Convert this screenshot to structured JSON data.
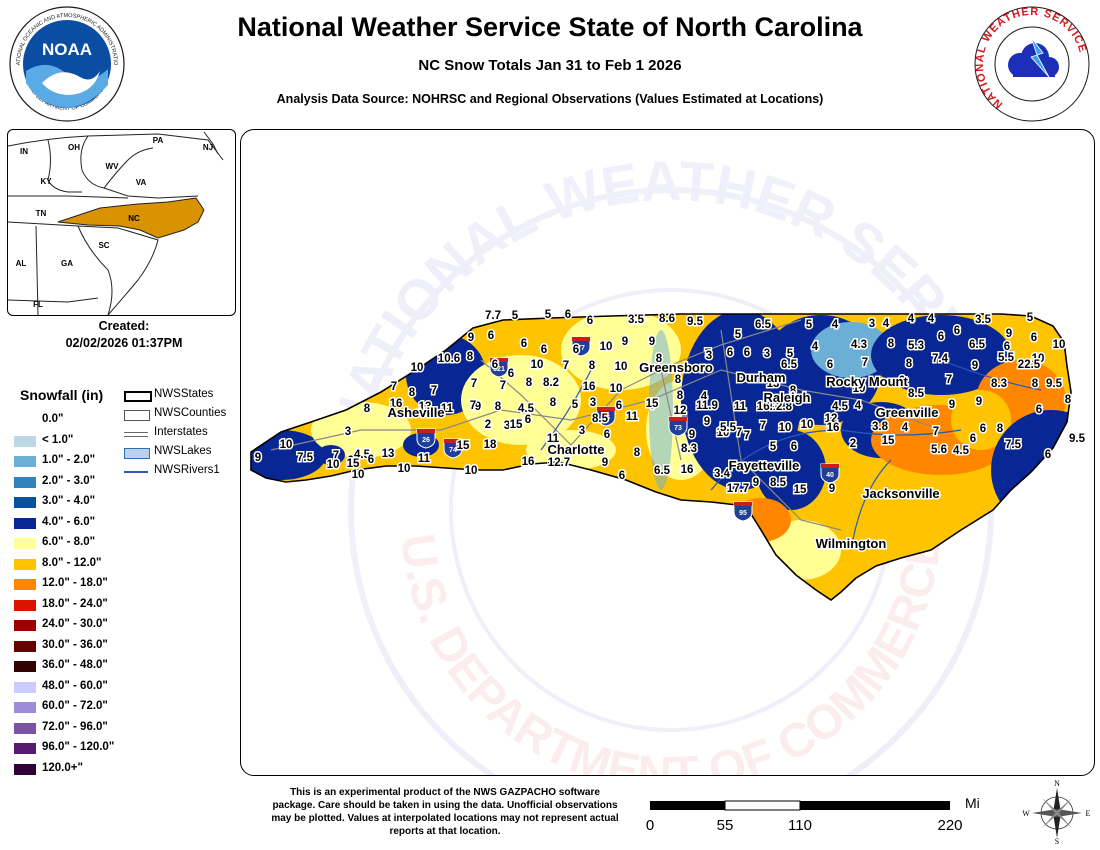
{
  "header": {
    "title": "National Weather Service State of North Carolina",
    "subtitle": "NC Snow Totals Jan 31 to Feb 1 2026",
    "source": "Analysis Data Source: NOHRSC and Regional Observations (Values Estimated at Locations)"
  },
  "logos": {
    "noaa_text": "NOAA",
    "noaa_ring_top": "NATIONAL OCEANIC AND ATMOSPHERIC ADMINISTRATION",
    "noaa_ring_bottom": "U.S. DEPARTMENT OF COMMERCE",
    "nws_ring": "NATIONAL WEATHER SERVICE"
  },
  "watermark": {
    "top": "NATIONAL WEATHER SERVICE",
    "bottom": "U.S. DEPARTMENT OF COMMERCE"
  },
  "inset": {
    "states": [
      "PA",
      "NJ",
      "IN",
      "OH",
      "WV",
      "KY",
      "VA",
      "TN",
      "NC",
      "SC",
      "AL",
      "GA",
      "FL"
    ],
    "highlight_color": "#D99200"
  },
  "created": {
    "label": "Created:",
    "datetime": "02/02/2026 01:37PM"
  },
  "legend": {
    "title": "Snowfall (in)",
    "items": [
      {
        "label": "0.0\"",
        "color": "#FFFFFF"
      },
      {
        "label": "< 1.0\"",
        "color": "#BDD7E7"
      },
      {
        "label": "1.0\" - 2.0\"",
        "color": "#6BAED6"
      },
      {
        "label": "2.0\" - 3.0\"",
        "color": "#3182BD"
      },
      {
        "label": "3.0\" - 4.0\"",
        "color": "#08519C"
      },
      {
        "label": "4.0\" - 6.0\"",
        "color": "#082694"
      },
      {
        "label": "6.0\" - 8.0\"",
        "color": "#FFFF96"
      },
      {
        "label": "8.0\" - 12.0\"",
        "color": "#FFC400"
      },
      {
        "label": "12.0\" - 18.0\"",
        "color": "#FF8700"
      },
      {
        "label": "18.0\" - 24.0\"",
        "color": "#DB1400"
      },
      {
        "label": "24.0\" - 30.0\"",
        "color": "#9E0000"
      },
      {
        "label": "30.0\" - 36.0\"",
        "color": "#690000"
      },
      {
        "label": "36.0\" - 48.0\"",
        "color": "#330000"
      },
      {
        "label": "48.0\" - 60.0\"",
        "color": "#CCCCFF"
      },
      {
        "label": "60.0\" - 72.0\"",
        "color": "#9F8CD8"
      },
      {
        "label": "72.0\" - 96.0\"",
        "color": "#7C52A5"
      },
      {
        "label": "96.0\" - 120.0\"",
        "color": "#561C72"
      },
      {
        "label": "120.0+\"",
        "color": "#2E0033"
      }
    ]
  },
  "layers": [
    {
      "label": "NWSStates",
      "type": "states"
    },
    {
      "label": "NWSCounties",
      "type": "counties"
    },
    {
      "label": "Interstates",
      "type": "interstates"
    },
    {
      "label": "NWSLakes",
      "type": "lakes"
    },
    {
      "label": "NWSRivers1",
      "type": "rivers"
    }
  ],
  "cities": [
    "Greensboro",
    "Durham",
    "Rocky Mount",
    "Raleigh",
    "Asheville",
    "Greenville",
    "Charlotte",
    "Fayetteville",
    "Jacksonville",
    "Wilmington"
  ],
  "interstate_shields": [
    "321",
    "77",
    "85",
    "73",
    "26",
    "74",
    "40",
    "95"
  ],
  "snow_values": [
    "7.7",
    "5",
    "5",
    "6",
    "6",
    "3.5",
    "8.6",
    "9.5",
    "5",
    "6.5",
    "5",
    "4",
    "3",
    "4",
    "4",
    "4",
    "6",
    "3.5",
    "5",
    "9",
    "6",
    "10",
    "9",
    "6",
    "6",
    "6",
    "6",
    "10",
    "9",
    "9",
    "7",
    "6",
    "6",
    "3",
    "5",
    "4",
    "4.3",
    "8",
    "5.3",
    "6",
    "6.5",
    "6",
    "10",
    "10.6",
    "8",
    "6",
    "6",
    "10",
    "7",
    "8",
    "10",
    "8",
    "3",
    "6.5",
    "6",
    "7",
    "8",
    "7.4",
    "9",
    "5.5",
    "22.5",
    "10",
    "7",
    "7",
    "8",
    "8.2",
    "16",
    "10",
    "8",
    "4",
    "8",
    "13",
    "8",
    "10",
    "6",
    "8.5",
    "7",
    "8.3",
    "8",
    "9.5",
    "7",
    "8",
    "7",
    "11",
    "9",
    "8",
    "4.5",
    "8",
    "5",
    "3",
    "6",
    "4",
    "8",
    "11.9",
    "11",
    "16.1",
    "2.8",
    "4.5",
    "4",
    "9",
    "9",
    "6",
    "8",
    "8",
    "16",
    "13",
    "7",
    "2",
    "3",
    "6",
    "8.5",
    "11",
    "15",
    "12",
    "9",
    "7",
    "7",
    "10",
    "10",
    "12",
    "2",
    "3.8",
    "4",
    "7",
    "6",
    "8",
    "7.5",
    "9.5",
    "9",
    "10",
    "7.5",
    "7",
    "3",
    "3",
    "4.5",
    "6",
    "11",
    "15",
    "18",
    "15",
    "11",
    "3",
    "6",
    "8",
    "8.3",
    "9",
    "10",
    "5.5",
    "7",
    "5",
    "6",
    "16",
    "15",
    "5.6",
    "4.5",
    "6",
    "6",
    "10",
    "15",
    "10",
    "13",
    "10",
    "10",
    "16",
    "12.7",
    "9",
    "6",
    "6.5",
    "16",
    "3.4",
    "17.7",
    "9",
    "8.5",
    "15",
    "9"
  ],
  "footer": {
    "disclaimer": "This is an experimental product of the NWS GAZPACHO software package. Care should be taken in using the data. Unofficial observations may be plotted. Values at interpolated locations may not represent actual reports at that location.",
    "scale_unit": "Miles",
    "scale_ticks": [
      "0",
      "55",
      "110",
      "220"
    ],
    "compass": [
      "N",
      "S",
      "E",
      "W"
    ]
  }
}
